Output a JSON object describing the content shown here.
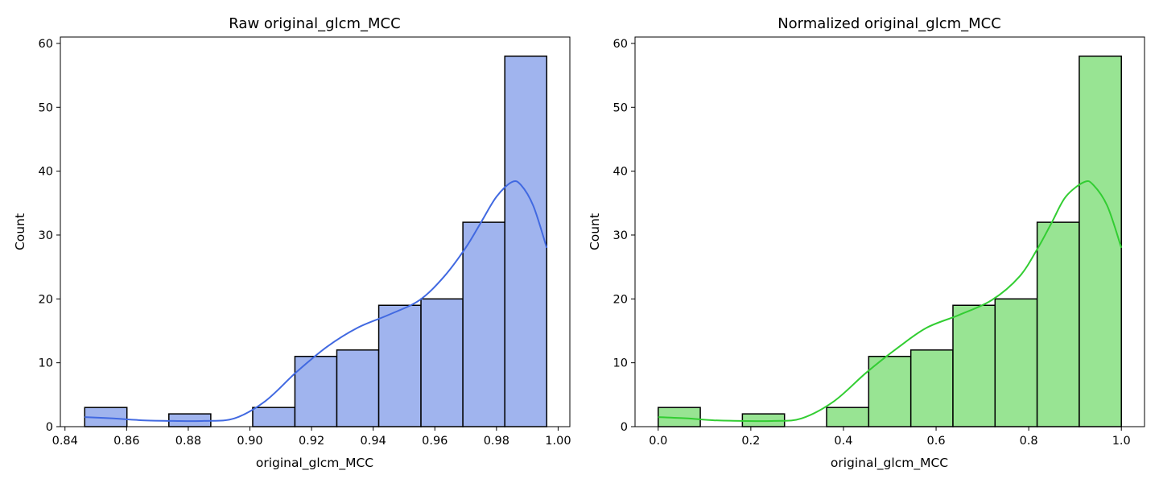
{
  "chart_data": [
    {
      "type": "bar",
      "title": "Raw original_glcm_MCC",
      "xlabel": "original_glcm_MCC",
      "ylabel": "Count",
      "xlim": [
        0.8385,
        1.0038
      ],
      "ylim": [
        0,
        61
      ],
      "xticks": [
        0.84,
        0.86,
        0.88,
        0.9,
        0.92,
        0.94,
        0.96,
        0.98,
        1.0
      ],
      "xtick_labels": [
        "0.84",
        "0.86",
        "0.88",
        "0.90",
        "0.92",
        "0.94",
        "0.96",
        "0.98",
        "1.00"
      ],
      "yticks": [
        0,
        10,
        20,
        30,
        40,
        50,
        60
      ],
      "ytick_labels": [
        "0",
        "10",
        "20",
        "30",
        "40",
        "50",
        "60"
      ],
      "bin_edges": [
        0.8464,
        0.8601,
        0.8737,
        0.8873,
        0.9009,
        0.9146,
        0.9282,
        0.9418,
        0.9555,
        0.9691,
        0.9827,
        0.9963
      ],
      "values": [
        3,
        0,
        2,
        0,
        3,
        11,
        12,
        19,
        20,
        32,
        58
      ],
      "bar_color": "#a0b4ee",
      "edge_color": "#000000",
      "kde": {
        "color": "#4169e1",
        "x": [
          0.8464,
          0.855,
          0.865,
          0.875,
          0.885,
          0.895,
          0.905,
          0.915,
          0.925,
          0.935,
          0.945,
          0.955,
          0.963,
          0.97,
          0.975,
          0.98,
          0.985,
          0.988,
          0.992,
          0.9963
        ],
        "y": [
          1.5,
          1.3,
          1.0,
          0.9,
          0.9,
          1.3,
          4.0,
          8.5,
          12.5,
          15.5,
          17.5,
          19.8,
          23.5,
          28.0,
          32.0,
          36.0,
          38.3,
          37.8,
          34.5,
          28.0
        ]
      }
    },
    {
      "type": "bar",
      "title": "Normalized original_glcm_MCC",
      "xlabel": "original_glcm_MCC",
      "ylabel": "Count",
      "xlim": [
        -0.05,
        1.05
      ],
      "ylim": [
        0,
        61
      ],
      "xticks": [
        0.0,
        0.2,
        0.4,
        0.6,
        0.8,
        1.0
      ],
      "xtick_labels": [
        "0.0",
        "0.2",
        "0.4",
        "0.6",
        "0.8",
        "1.0"
      ],
      "yticks": [
        0,
        10,
        20,
        30,
        40,
        50,
        60
      ],
      "ytick_labels": [
        "0",
        "10",
        "20",
        "30",
        "40",
        "50",
        "60"
      ],
      "bin_edges": [
        0.0,
        0.0909,
        0.1818,
        0.2727,
        0.3636,
        0.4545,
        0.5455,
        0.6364,
        0.7273,
        0.8182,
        0.9091,
        1.0
      ],
      "values": [
        3,
        0,
        2,
        0,
        3,
        11,
        12,
        19,
        20,
        32,
        58
      ],
      "bar_color": "#98e493",
      "edge_color": "#000000",
      "kde": {
        "color": "#32cd32",
        "x": [
          0.0,
          0.06,
          0.12,
          0.18,
          0.25,
          0.31,
          0.38,
          0.45,
          0.52,
          0.58,
          0.65,
          0.72,
          0.78,
          0.82,
          0.85,
          0.88,
          0.92,
          0.94,
          0.97,
          1.0
        ],
        "y": [
          1.5,
          1.3,
          1.0,
          0.9,
          0.9,
          1.3,
          4.0,
          8.5,
          12.5,
          15.5,
          17.5,
          19.8,
          23.5,
          28.0,
          32.0,
          36.0,
          38.3,
          37.8,
          34.5,
          28.0
        ]
      }
    }
  ]
}
